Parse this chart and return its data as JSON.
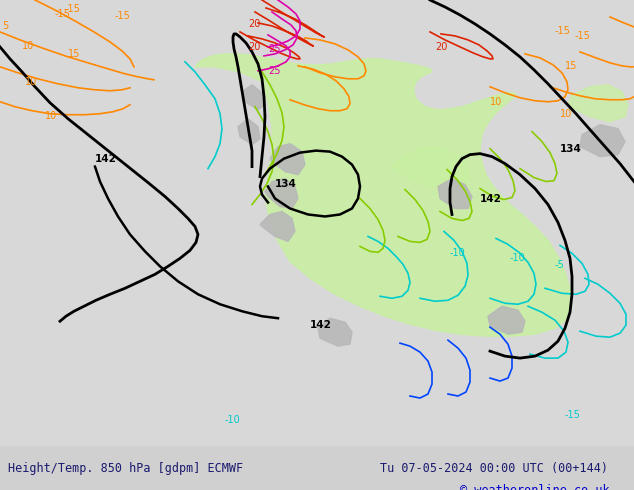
{
  "title_left": "Height/Temp. 850 hPa [gdpm] ECMWF",
  "title_right": "Tu 07-05-2024 00:00 UTC (00+144)",
  "copyright": "© weatheronline.co.uk",
  "title_color": "#1a1a6e",
  "copyright_color": "#0000cd",
  "background_color": "#e8e8e8",
  "land_color": "#d8d8d8",
  "green_fill_color": "#c8f0a0",
  "gray_terrain_color": "#b0b0b0",
  "contour_black_color": "#000000",
  "contour_orange_color": "#ff8800",
  "contour_cyan_color": "#00cccc",
  "contour_green_color": "#88cc00",
  "contour_red_color": "#dd2200",
  "contour_magenta_color": "#dd00aa",
  "contour_blue_color": "#0044ff",
  "fig_width": 6.34,
  "fig_height": 4.9,
  "dpi": 100
}
